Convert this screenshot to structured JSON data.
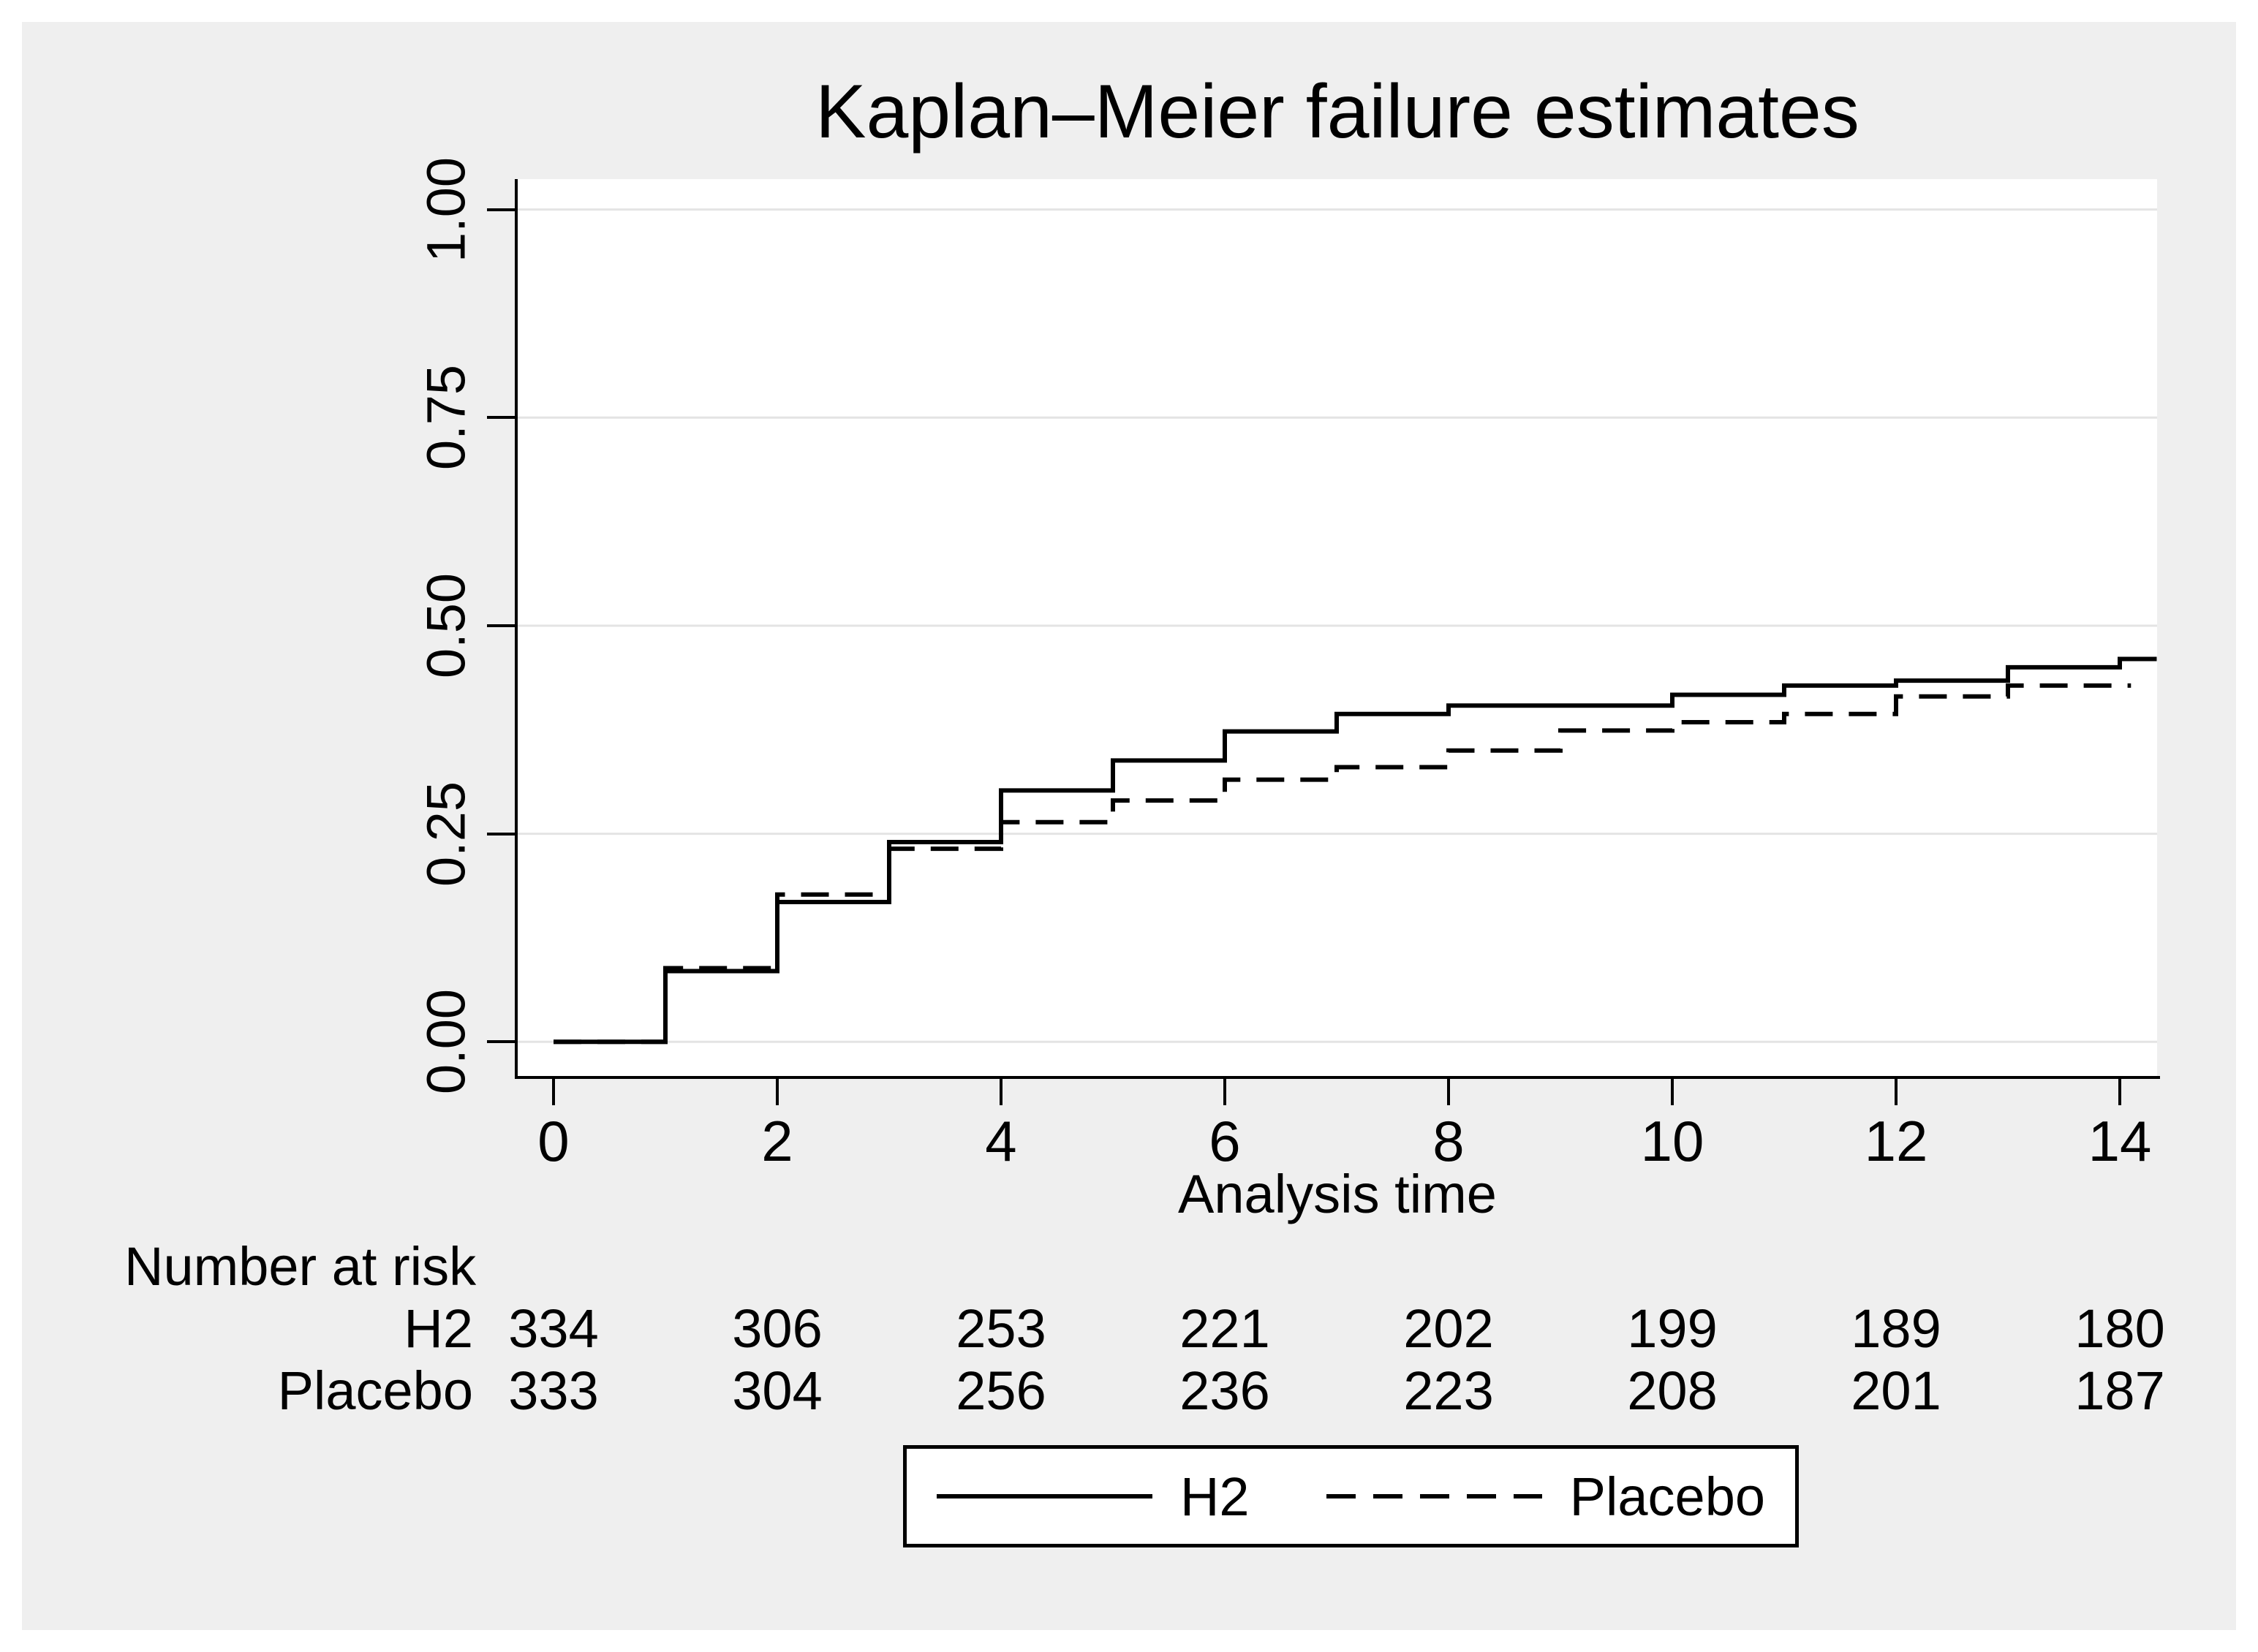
{
  "title": "Kaplan–Meier failure estimates",
  "x_axis": {
    "label": "Analysis time",
    "ticks": [
      0,
      2,
      4,
      6,
      8,
      10,
      12,
      14
    ]
  },
  "y_axis": {
    "ticks": [
      "0.00",
      "0.25",
      "0.50",
      "0.75",
      "1.00"
    ]
  },
  "at_risk": {
    "header": "Number at risk",
    "time_points": [
      0,
      2,
      4,
      6,
      8,
      10,
      12,
      14
    ],
    "rows": [
      {
        "label": "H2",
        "counts": [
          334,
          306,
          253,
          221,
          202,
          199,
          189,
          180
        ]
      },
      {
        "label": "Placebo",
        "counts": [
          333,
          304,
          256,
          236,
          223,
          208,
          201,
          187
        ]
      }
    ]
  },
  "legend": [
    {
      "label": "H2",
      "style": "solid"
    },
    {
      "label": "Placebo",
      "style": "dashed"
    }
  ],
  "colors": {
    "background": "#ffffff",
    "graph_region": "#efefef",
    "plot_background": "#ffffff",
    "gridline": "#e4e4e4",
    "line": "#000000",
    "text": "#000000"
  },
  "chart_data": {
    "type": "line",
    "subtype": "kaplan-meier-failure-step",
    "title": "Kaplan–Meier failure estimates",
    "xlabel": "Analysis time",
    "ylabel": "",
    "xlim": [
      -0.32,
      14.33
    ],
    "ylim": [
      -0.04,
      1.04
    ],
    "x_ticks": [
      0,
      2,
      4,
      6,
      8,
      10,
      12,
      14
    ],
    "y_ticks": [
      0.0,
      0.25,
      0.5,
      0.75,
      1.0
    ],
    "grid": "horizontal",
    "legend_position": "bottom-center",
    "series": [
      {
        "name": "H2",
        "line_style": "solid",
        "color": "#000000",
        "end_x": 14.33,
        "steps": [
          [
            0,
            0.0
          ],
          [
            1,
            0.085
          ],
          [
            2,
            0.168
          ],
          [
            3,
            0.24
          ],
          [
            4,
            0.302
          ],
          [
            5,
            0.338
          ],
          [
            6,
            0.373
          ],
          [
            7,
            0.394
          ],
          [
            8,
            0.404
          ],
          [
            10,
            0.417
          ],
          [
            11,
            0.428
          ],
          [
            12,
            0.434
          ],
          [
            13,
            0.45
          ],
          [
            14,
            0.46
          ]
        ]
      },
      {
        "name": "Placebo",
        "line_style": "dashed",
        "color": "#000000",
        "end_x": 14.1,
        "steps": [
          [
            0,
            0.0
          ],
          [
            1,
            0.0885
          ],
          [
            2,
            0.177
          ],
          [
            3,
            0.232
          ],
          [
            4,
            0.264
          ],
          [
            5,
            0.29
          ],
          [
            6,
            0.315
          ],
          [
            7,
            0.33
          ],
          [
            8,
            0.35
          ],
          [
            9,
            0.374
          ],
          [
            10,
            0.384
          ],
          [
            11,
            0.394
          ],
          [
            12,
            0.415
          ],
          [
            13,
            0.428
          ]
        ]
      }
    ]
  }
}
